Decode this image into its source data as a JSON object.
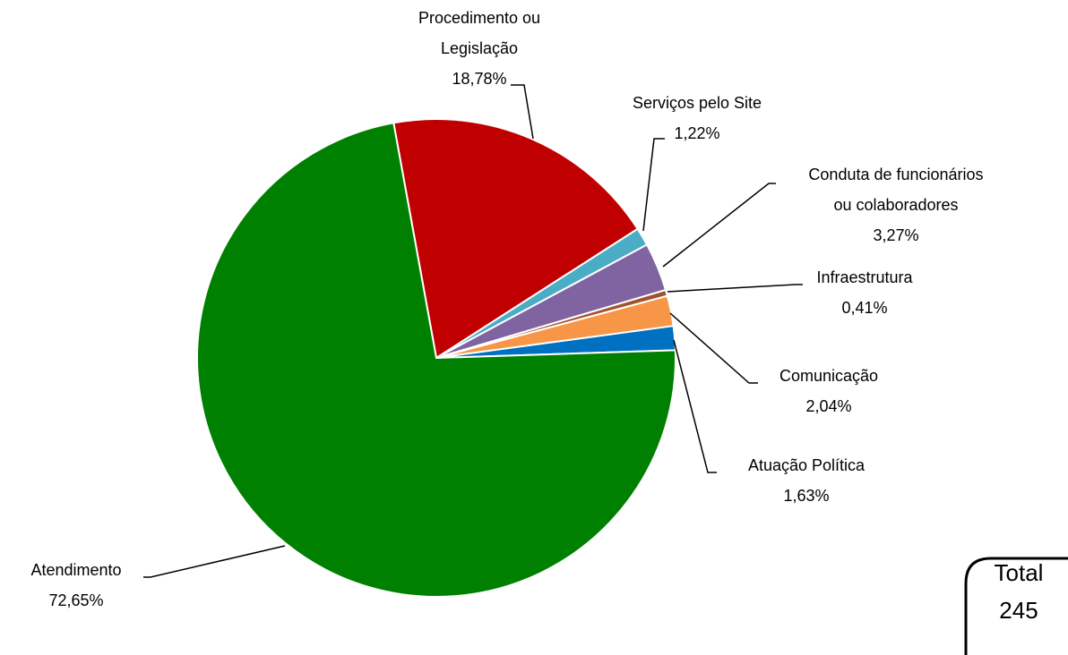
{
  "chart_data": {
    "type": "pie",
    "categories": [
      "Procedimento ou Legislação",
      "Serviços pelo Site",
      "Conduta de funcionários ou colaboradores",
      "Infraestrutura",
      "Comunicação",
      "Atuação Política",
      "Atendimento"
    ],
    "values": [
      18.78,
      1.22,
      3.27,
      0.41,
      2.04,
      1.63,
      72.65
    ],
    "value_labels": [
      "18,78%",
      "1,22%",
      "3,27%",
      "0,41%",
      "2,04%",
      "1,63%",
      "72,65%"
    ],
    "colors": [
      "#c00000",
      "#4bacc6",
      "#8064a2",
      "#a0522d",
      "#f79646",
      "#0070c0",
      "#008000"
    ],
    "total_label": "Total",
    "total": 245
  }
}
